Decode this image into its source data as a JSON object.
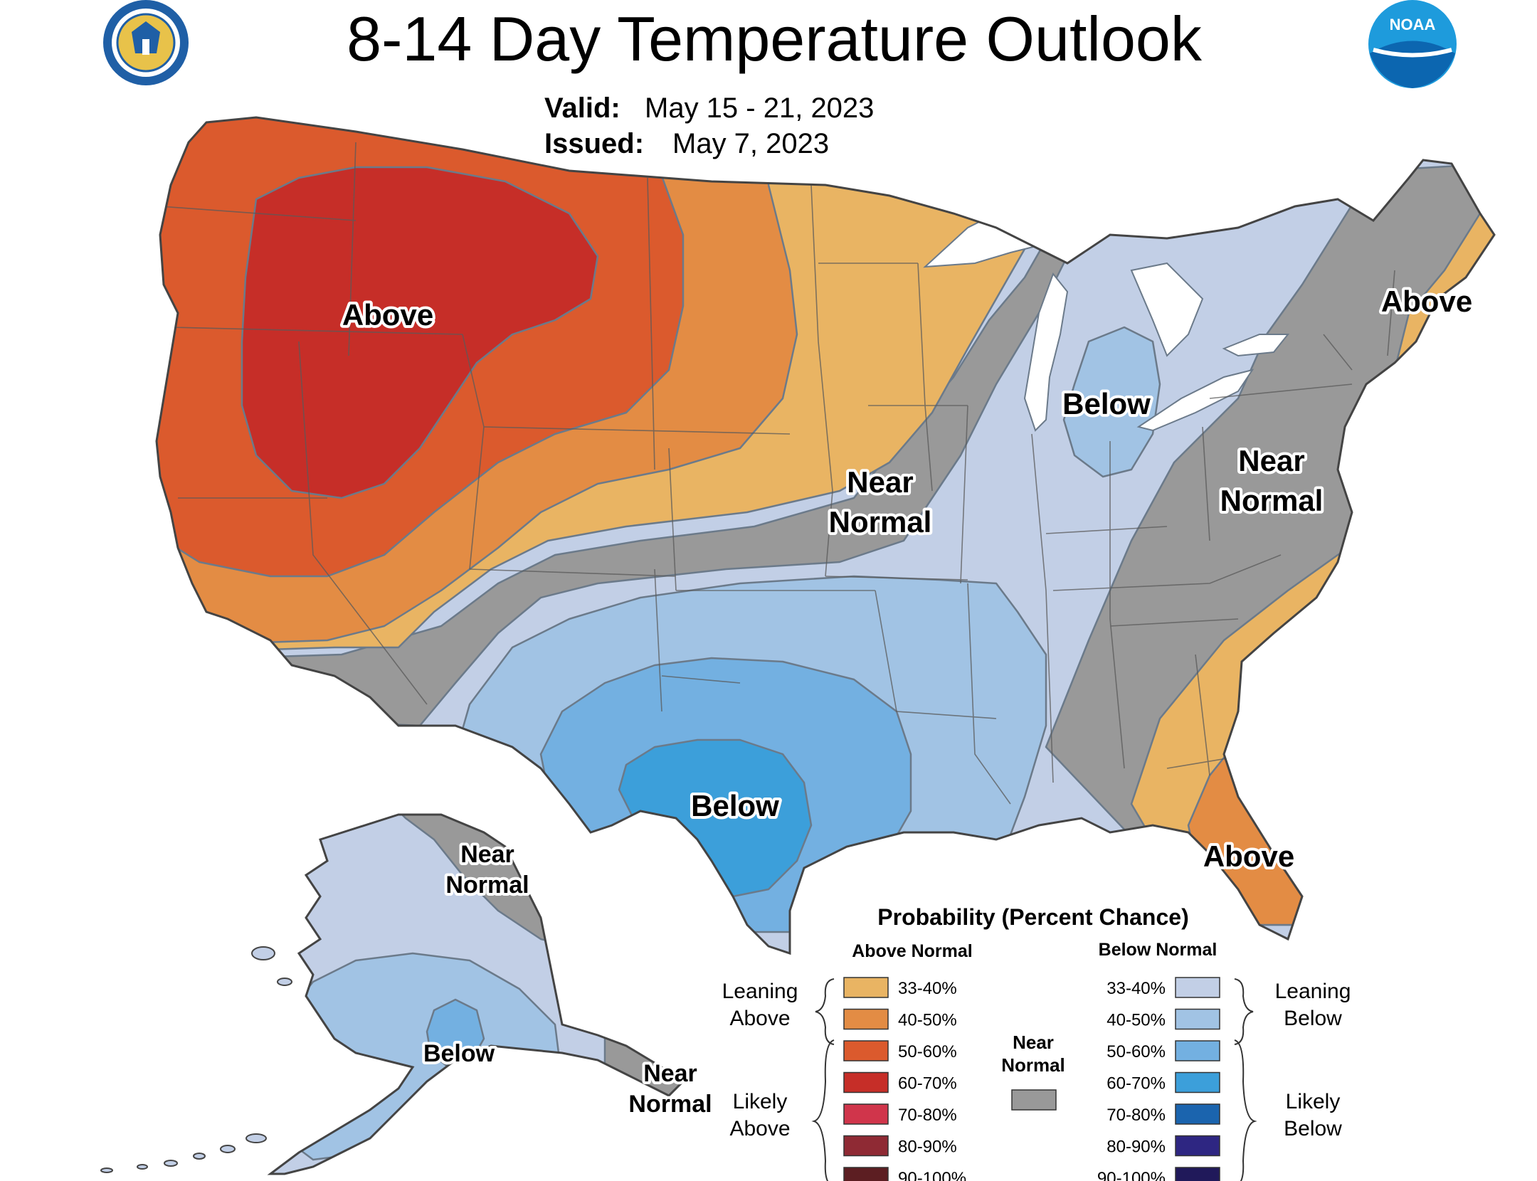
{
  "title": "8-14 Day Temperature Outlook",
  "valid": {
    "label": "Valid:",
    "value": "May 15 - 21, 2023"
  },
  "issued": {
    "label": "Issued:",
    "value": "May 7, 2023"
  },
  "logos": {
    "left": "doc-seal-icon",
    "right": "noaa-logo-icon",
    "noaa_text": "NOAA"
  },
  "map_labels": {
    "west_above": "Above",
    "great_lakes_below": "Below",
    "plains_near_1": "Near",
    "plains_near_2": "Normal",
    "east_near_1": "Near",
    "east_near_2": "Normal",
    "new_england_above": "Above",
    "texas_below": "Below",
    "florida_above": "Above",
    "alaska_near_1": "Near",
    "alaska_near_2": "Normal",
    "alaska_below": "Below",
    "aleutian_near_1": "Near",
    "aleutian_near_2": "Normal"
  },
  "legend": {
    "title": "Probability (Percent Chance)",
    "above_header": "Above Normal",
    "below_header": "Below Normal",
    "leaning_above_1": "Leaning",
    "leaning_above_2": "Above",
    "likely_above_1": "Likely",
    "likely_above_2": "Above",
    "leaning_below_1": "Leaning",
    "leaning_below_2": "Below",
    "likely_below_1": "Likely",
    "likely_below_2": "Below",
    "near_1": "Near",
    "near_2": "Normal",
    "near_color": "#999999",
    "above_items": [
      {
        "range": "33-40%",
        "color": "#e9b463"
      },
      {
        "range": "40-50%",
        "color": "#e38c44"
      },
      {
        "range": "50-60%",
        "color": "#db5a2d"
      },
      {
        "range": "60-70%",
        "color": "#c62e28"
      },
      {
        "range": "70-80%",
        "color": "#d0354b"
      },
      {
        "range": "80-90%",
        "color": "#8f2a34"
      },
      {
        "range": "90-100%",
        "color": "#5c1e22"
      }
    ],
    "below_items": [
      {
        "range": "33-40%",
        "color": "#c2cfe6"
      },
      {
        "range": "40-50%",
        "color": "#a1c3e4"
      },
      {
        "range": "50-60%",
        "color": "#73b0e1"
      },
      {
        "range": "60-70%",
        "color": "#3c9fda"
      },
      {
        "range": "70-80%",
        "color": "#1b64ae"
      },
      {
        "range": "80-90%",
        "color": "#2e2682"
      },
      {
        "range": "90-100%",
        "color": "#20195a"
      }
    ]
  },
  "colors": {
    "above_33_40": "#e9b463",
    "above_40_50": "#e38c44",
    "above_50_60": "#db5a2d",
    "above_60_70": "#c62e28",
    "near_normal": "#999999",
    "below_33_40": "#c2cfe6",
    "below_40_50": "#a1c3e4",
    "below_50_60": "#73b0e1",
    "below_60_70": "#3c9fda",
    "lakes": "#ffffff"
  }
}
